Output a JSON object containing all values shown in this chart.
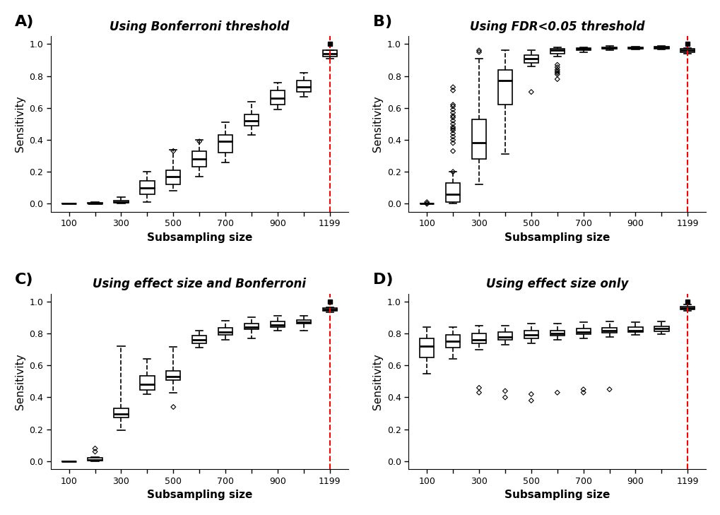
{
  "panels": {
    "A": {
      "title": "Using Bonferroni threshold",
      "x_sizes": [
        100,
        200,
        300,
        400,
        500,
        600,
        700,
        800,
        900,
        1000,
        1199
      ],
      "xtick_labels": [
        "100",
        "",
        "300",
        "",
        "500",
        "",
        "700",
        "",
        "900",
        "",
        "1199"
      ],
      "boxplot_data": {
        "medians": [
          0.0,
          0.002,
          0.01,
          0.1,
          0.17,
          0.28,
          0.39,
          0.52,
          0.66,
          0.73,
          0.94
        ],
        "q1": [
          0.0,
          0.0,
          0.005,
          0.06,
          0.12,
          0.23,
          0.32,
          0.49,
          0.62,
          0.7,
          0.92
        ],
        "q3": [
          0.002,
          0.005,
          0.02,
          0.145,
          0.21,
          0.33,
          0.43,
          0.56,
          0.71,
          0.77,
          0.96
        ],
        "whislo": [
          0.0,
          0.0,
          0.0,
          0.01,
          0.08,
          0.17,
          0.26,
          0.43,
          0.59,
          0.67,
          0.91
        ],
        "whishi": [
          0.003,
          0.01,
          0.04,
          0.2,
          0.34,
          0.4,
          0.51,
          0.64,
          0.76,
          0.82,
          0.96
        ],
        "fliers_y": [
          [],
          [],
          [],
          [],
          [
            0.33
          ],
          [
            0.39
          ],
          [],
          [],
          [],
          [],
          []
        ]
      }
    },
    "B": {
      "title": "Using FDR<0.05 threshold",
      "x_sizes": [
        100,
        200,
        300,
        400,
        500,
        600,
        700,
        800,
        900,
        1000,
        1199
      ],
      "xtick_labels": [
        "100",
        "",
        "300",
        "",
        "500",
        "",
        "700",
        "",
        "900",
        "",
        "1199"
      ],
      "boxplot_data": {
        "medians": [
          0.0,
          0.06,
          0.38,
          0.77,
          0.91,
          0.96,
          0.97,
          0.975,
          0.975,
          0.98,
          0.96
        ],
        "q1": [
          0.0,
          0.01,
          0.28,
          0.62,
          0.88,
          0.94,
          0.96,
          0.97,
          0.97,
          0.97,
          0.95
        ],
        "q3": [
          0.0,
          0.13,
          0.53,
          0.84,
          0.93,
          0.97,
          0.975,
          0.98,
          0.98,
          0.985,
          0.97
        ],
        "whislo": [
          0.0,
          0.0,
          0.12,
          0.31,
          0.86,
          0.92,
          0.95,
          0.96,
          0.965,
          0.965,
          0.94
        ],
        "whishi": [
          0.0,
          0.2,
          0.91,
          0.96,
          0.96,
          0.98,
          0.98,
          0.99,
          0.985,
          0.99,
          0.975
        ],
        "fliers_y": [
          [
            0.0,
            0.0,
            0.01
          ],
          [
            0.2,
            0.33,
            0.38,
            0.4,
            0.42,
            0.44,
            0.46,
            0.47,
            0.48,
            0.5,
            0.52,
            0.54,
            0.55,
            0.57,
            0.59,
            0.61,
            0.62,
            0.71,
            0.73
          ],
          [
            0.95,
            0.96
          ],
          [],
          [
            0.7
          ],
          [
            0.78,
            0.81,
            0.82,
            0.83,
            0.84,
            0.855,
            0.87
          ],
          [],
          [],
          [],
          [],
          []
        ]
      }
    },
    "C": {
      "title": "Using effect size and Bonferroni",
      "x_sizes": [
        100,
        200,
        300,
        400,
        500,
        600,
        700,
        800,
        900,
        1000,
        1199
      ],
      "xtick_labels": [
        "100",
        "",
        "300",
        "",
        "500",
        "",
        "700",
        "",
        "900",
        "",
        "1199"
      ],
      "boxplot_data": {
        "medians": [
          0.0,
          0.01,
          0.295,
          0.48,
          0.53,
          0.76,
          0.81,
          0.84,
          0.855,
          0.87,
          0.95
        ],
        "q1": [
          0.0,
          0.005,
          0.275,
          0.445,
          0.51,
          0.74,
          0.79,
          0.825,
          0.84,
          0.86,
          0.94
        ],
        "q3": [
          0.0,
          0.02,
          0.33,
          0.535,
          0.565,
          0.785,
          0.835,
          0.86,
          0.875,
          0.885,
          0.96
        ],
        "whislo": [
          0.0,
          0.0,
          0.195,
          0.42,
          0.43,
          0.71,
          0.76,
          0.77,
          0.82,
          0.82,
          0.935
        ],
        "whishi": [
          0.0,
          0.025,
          0.72,
          0.64,
          0.715,
          0.82,
          0.88,
          0.9,
          0.91,
          0.91,
          0.965
        ],
        "fliers_y": [
          [],
          [
            0.06,
            0.08
          ],
          [],
          [],
          [
            0.34
          ],
          [],
          [],
          [],
          [],
          [],
          []
        ]
      }
    },
    "D": {
      "title": "Using effect size only",
      "x_sizes": [
        100,
        200,
        300,
        400,
        500,
        600,
        700,
        800,
        900,
        1000,
        1199
      ],
      "xtick_labels": [
        "100",
        "",
        "300",
        "",
        "500",
        "",
        "700",
        "",
        "900",
        "",
        "1199"
      ],
      "boxplot_data": {
        "medians": [
          0.72,
          0.75,
          0.76,
          0.78,
          0.79,
          0.8,
          0.81,
          0.82,
          0.82,
          0.83,
          0.96
        ],
        "q1": [
          0.65,
          0.71,
          0.74,
          0.76,
          0.77,
          0.785,
          0.795,
          0.805,
          0.81,
          0.815,
          0.95
        ],
        "q3": [
          0.77,
          0.79,
          0.8,
          0.81,
          0.82,
          0.82,
          0.83,
          0.835,
          0.84,
          0.845,
          0.97
        ],
        "whislo": [
          0.55,
          0.64,
          0.7,
          0.73,
          0.74,
          0.76,
          0.77,
          0.78,
          0.79,
          0.795,
          0.94
        ],
        "whishi": [
          0.84,
          0.84,
          0.85,
          0.85,
          0.86,
          0.86,
          0.87,
          0.875,
          0.87,
          0.875,
          0.98
        ],
        "fliers_y": [
          [],
          [],
          [
            0.43,
            0.46
          ],
          [
            0.4,
            0.44
          ],
          [
            0.38,
            0.42
          ],
          [
            0.43
          ],
          [
            0.43,
            0.45
          ],
          [
            0.45
          ],
          [],
          [],
          []
        ]
      }
    }
  },
  "panel_labels": [
    "A)",
    "B)",
    "C)",
    "D)"
  ],
  "xlabel": "Subsampling size",
  "ylabel": "Sensitivity",
  "yticks": [
    0.0,
    0.2,
    0.4,
    0.6,
    0.8,
    1.0
  ],
  "background_color": "#ffffff",
  "box_facecolor": "white",
  "box_edgecolor": "black",
  "median_color": "black",
  "whisker_color": "black",
  "cap_color": "black",
  "flier_marker": "D",
  "flier_color": "black",
  "red_dashed_color": "red"
}
